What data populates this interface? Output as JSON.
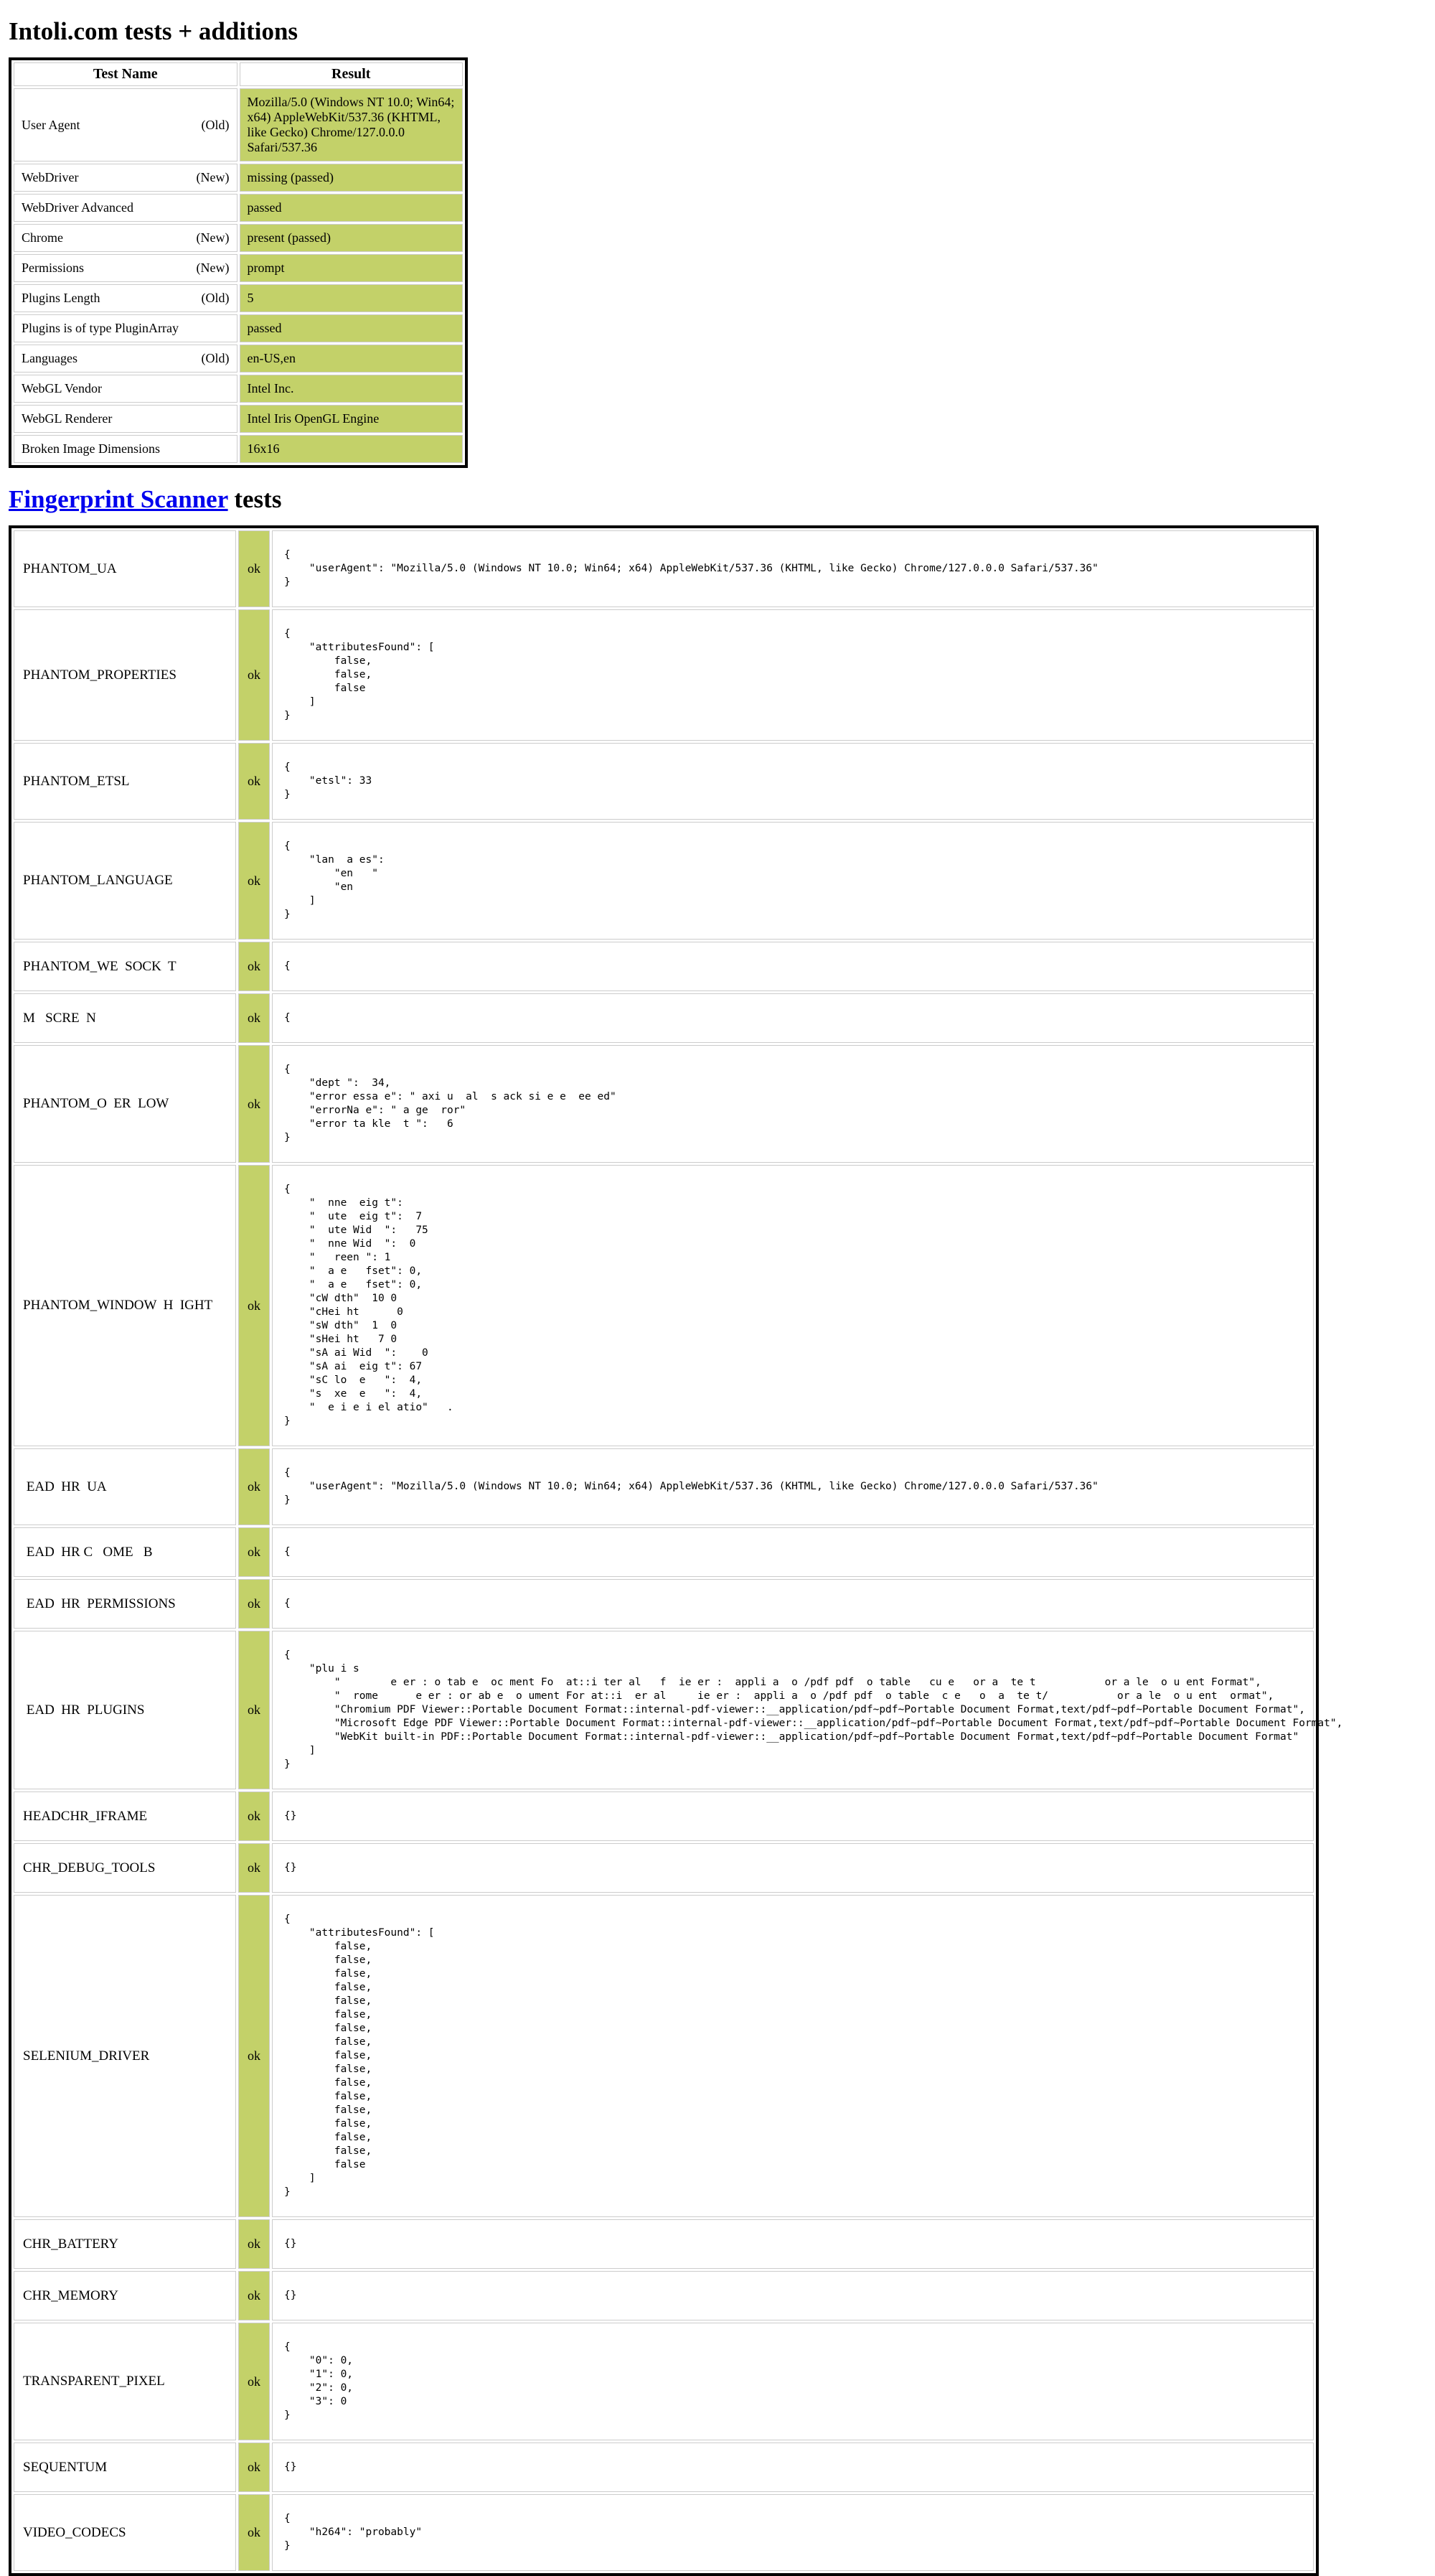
{
  "colors": {
    "pass_green": "#c3d169",
    "link_blue": "#0000ee",
    "table_border": "#000000",
    "cell_border": "#cccccc"
  },
  "page": {
    "title1": "Intoli.com tests + additions",
    "title2_link": "Fingerprint Scanner",
    "title2_rest": " tests"
  },
  "intoli_table": {
    "headers": [
      "Test Name",
      "Result"
    ],
    "rows": [
      {
        "name": "User Agent",
        "qualifier": "(Old)",
        "result": "Mozilla/5.0 (Windows NT 10.0; Win64; x64) AppleWebKit/537.36 (KHTML, like Gecko) Chrome/127.0.0.0 Safari/537.36"
      },
      {
        "name": "WebDriver",
        "qualifier": "(New)",
        "result": "missing (passed)"
      },
      {
        "name": "WebDriver Advanced",
        "qualifier": "",
        "result": "passed"
      },
      {
        "name": "Chrome",
        "qualifier": "(New)",
        "result": "present (passed)"
      },
      {
        "name": "Permissions",
        "qualifier": "(New)",
        "result": "prompt"
      },
      {
        "name": "Plugins Length",
        "qualifier": "(Old)",
        "result": "5"
      },
      {
        "name": "Plugins is of type PluginArray",
        "qualifier": "",
        "result": "passed"
      },
      {
        "name": "Languages",
        "qualifier": "(Old)",
        "result": "en-US,en"
      },
      {
        "name": "WebGL Vendor",
        "qualifier": "",
        "result": "Intel Inc."
      },
      {
        "name": "WebGL Renderer",
        "qualifier": "",
        "result": "Intel Iris OpenGL Engine"
      },
      {
        "name": "Broken Image Dimensions",
        "qualifier": "",
        "result": "16x16"
      }
    ]
  },
  "scanner_table": {
    "rows": [
      {
        "name": "PHANTOM_UA",
        "status": "ok",
        "json": "{\n    \"userAgent\": \"Mozilla/5.0 (Windows NT 10.0; Win64; x64) AppleWebKit/537.36 (KHTML, like Gecko) Chrome/127.0.0.0 Safari/537.36\"\n}"
      },
      {
        "name": "PHANTOM_PROPERTIES",
        "status": "ok",
        "json": "{\n    \"attributesFound\": [\n        false,\n        false,\n        false\n    ]\n}"
      },
      {
        "name": "PHANTOM_ETSL",
        "status": "ok",
        "json": "{\n    \"etsl\": 33\n}"
      },
      {
        "name": "PHANTOM_LANGUAGE",
        "status": "ok",
        "json": "{\n    \"lan  a es\": \n        \"en   \"\n        \"en\n    ]\n}"
      },
      {
        "name": "PHANTOM_WE  SOCK  T",
        "status": "ok",
        "json": "{"
      },
      {
        "name": "M   SCRE  N",
        "status": "ok",
        "json": "{"
      },
      {
        "name": "PHANTOM_O  ER  LOW",
        "status": "ok",
        "json": "{\n    \"dept \":  34,\n    \"error essa e\": \" axi u  al  s ack si e e  ee ed\"\n    \"errorNa e\": \" a ge  ror\"\n    \"error ta kle  t \":   6\n}"
      },
      {
        "name": "PHANTOM_WINDOW  H  IGHT",
        "status": "ok",
        "json": "{\n    \"  nne  eig t\": \n    \"  ute  eig t\":  7\n    \"  ute Wid  \":   75\n    \"  nne Wid  \":  0\n    \"   reen \": 1\n    \"  a e   fset\": 0,\n    \"  a e   fset\": 0,\n    \"cW dth\"  10 0\n    \"cHei ht      0\n    \"sW dth\"  1  0\n    \"sHei ht   7 0\n    \"sA ai Wid  \":    0\n    \"sA ai  eig t\": 67\n    \"sC lo  e   \":  4,\n    \"s  xe  e   \":  4,\n    \"  e i e i el atio\"   .\n}"
      },
      {
        "name": " EAD  HR  UA",
        "status": "ok",
        "json": "{\n    \"userAgent\": \"Mozilla/5.0 (Windows NT 10.0; Win64; x64) AppleWebKit/537.36 (KHTML, like Gecko) Chrome/127.0.0.0 Safari/537.36\"\n}"
      },
      {
        "name": " EAD  HR C   OME   B",
        "status": "ok",
        "json": "{"
      },
      {
        "name": " EAD  HR  PERMISSIONS",
        "status": "ok",
        "json": "{"
      },
      {
        "name": " EAD  HR  PLUGINS",
        "status": "ok",
        "json": "{\n    \"plu i s\n        \"        e er : o tab e  oc ment Fo  at::i ter al   f  ie er :  appli a  o /pdf pdf  o table   cu e   or a  te t           or a le  o u ent Format\",\n        \"  rome      e er : or ab e  o ument For at::i  er al     ie er :  appli a  o /pdf pdf  o table  c e   o  a  te t/           or a le  o u ent  ormat\",\n        \"Chromium PDF Viewer::Portable Document Format::internal-pdf-viewer::__application/pdf~pdf~Portable Document Format,text/pdf~pdf~Portable Document Format\",\n        \"Microsoft Edge PDF Viewer::Portable Document Format::internal-pdf-viewer::__application/pdf~pdf~Portable Document Format,text/pdf~pdf~Portable Document Format\",\n        \"WebKit built-in PDF::Portable Document Format::internal-pdf-viewer::__application/pdf~pdf~Portable Document Format,text/pdf~pdf~Portable Document Format\"\n    ]\n}"
      },
      {
        "name": "HEADCHR_IFRAME",
        "status": "ok",
        "json": "{}"
      },
      {
        "name": "CHR_DEBUG_TOOLS",
        "status": "ok",
        "json": "{}"
      },
      {
        "name": "SELENIUM_DRIVER",
        "status": "ok",
        "json": "{\n    \"attributesFound\": [\n        false,\n        false,\n        false,\n        false,\n        false,\n        false,\n        false,\n        false,\n        false,\n        false,\n        false,\n        false,\n        false,\n        false,\n        false,\n        false,\n        false\n    ]\n}"
      },
      {
        "name": "CHR_BATTERY",
        "status": "ok",
        "json": "{}"
      },
      {
        "name": "CHR_MEMORY",
        "status": "ok",
        "json": "{}"
      },
      {
        "name": "TRANSPARENT_PIXEL",
        "status": "ok",
        "json": "{\n    \"0\": 0,\n    \"1\": 0,\n    \"2\": 0,\n    \"3\": 0\n}"
      },
      {
        "name": "SEQUENTUM",
        "status": "ok",
        "json": "{}"
      },
      {
        "name": "VIDEO_CODECS",
        "status": "ok",
        "json": "{\n    \"h264\": \"probably\"\n}"
      }
    ]
  }
}
